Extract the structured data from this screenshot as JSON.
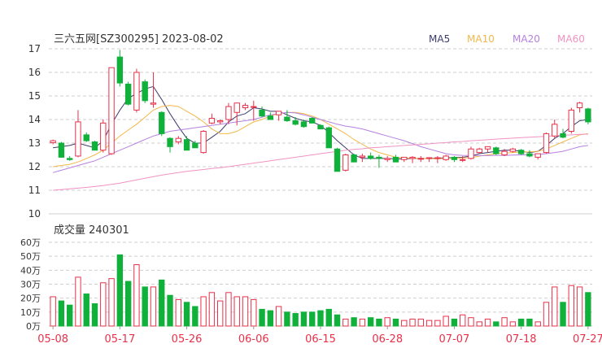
{
  "header": {
    "title": "三六五网[SZ300295] 2023-08-02",
    "legend": [
      {
        "name": "MA5",
        "color": "#3c3c6c"
      },
      {
        "name": "MA10",
        "color": "#f2b84a"
      },
      {
        "name": "MA20",
        "color": "#b580de"
      },
      {
        "name": "MA60",
        "color": "#ef93c2"
      }
    ]
  },
  "volume_header": "成交量 240301",
  "colors": {
    "up": "#e8314a",
    "down": "#10b13a",
    "grid": "#cfcfcf",
    "axis_text": "#333333",
    "date_text": "#e8314a"
  },
  "chart_data": {
    "type": "candlestick",
    "price_axis": {
      "min": 10,
      "max": 17,
      "ticks": [
        "17",
        "16",
        "15",
        "14",
        "13",
        "12",
        "11",
        "10"
      ]
    },
    "volume_axis": {
      "min": 0,
      "max": 60,
      "unit": "万",
      "ticks": [
        "60万",
        "50万",
        "40万",
        "30万",
        "20万",
        "10万",
        "0万"
      ]
    },
    "date_labels": [
      "05-08",
      "05-17",
      "05-26",
      "06-06",
      "06-15",
      "06-28",
      "07-07",
      "07-18",
      "07-27"
    ],
    "date_label_index": [
      0,
      8,
      16,
      24,
      32,
      40,
      48,
      56,
      64
    ],
    "candles": [
      [
        13.02,
        13.15,
        12.95,
        13.1
      ],
      [
        13.0,
        13.05,
        12.45,
        12.4
      ],
      [
        12.35,
        12.45,
        12.25,
        12.3
      ],
      [
        12.45,
        14.4,
        12.4,
        13.9
      ],
      [
        13.35,
        13.45,
        13.05,
        13.1
      ],
      [
        13.05,
        13.1,
        12.7,
        12.7
      ],
      [
        12.7,
        14.0,
        12.6,
        13.85
      ],
      [
        12.55,
        16.2,
        12.5,
        16.2
      ],
      [
        16.65,
        16.95,
        15.4,
        15.55
      ],
      [
        15.5,
        15.6,
        14.6,
        14.65
      ],
      [
        14.4,
        16.15,
        14.3,
        16.0
      ],
      [
        15.6,
        15.7,
        14.7,
        14.8
      ],
      [
        14.65,
        16.0,
        14.5,
        14.7
      ],
      [
        14.3,
        14.35,
        13.3,
        13.4
      ],
      [
        13.2,
        13.25,
        12.6,
        12.85
      ],
      [
        13.05,
        13.3,
        12.95,
        13.2
      ],
      [
        13.15,
        13.3,
        12.75,
        12.7
      ],
      [
        13.0,
        13.1,
        12.8,
        12.8
      ],
      [
        12.6,
        13.55,
        12.55,
        13.5
      ],
      [
        13.85,
        14.25,
        13.8,
        14.05
      ],
      [
        13.9,
        14.0,
        13.8,
        13.95
      ],
      [
        14.0,
        14.7,
        13.8,
        14.55
      ],
      [
        14.3,
        14.7,
        13.75,
        14.7
      ],
      [
        14.5,
        14.7,
        14.4,
        14.6
      ],
      [
        14.55,
        14.8,
        13.95,
        14.55
      ],
      [
        14.4,
        14.55,
        14.1,
        14.15
      ],
      [
        14.15,
        14.3,
        14.0,
        14.0
      ],
      [
        14.2,
        14.3,
        13.95,
        14.35
      ],
      [
        14.1,
        14.4,
        13.9,
        13.95
      ],
      [
        13.95,
        14.1,
        13.75,
        13.8
      ],
      [
        13.9,
        14.0,
        13.65,
        13.7
      ],
      [
        14.05,
        14.1,
        13.9,
        13.85
      ],
      [
        13.75,
        13.8,
        13.65,
        13.6
      ],
      [
        13.65,
        13.7,
        12.8,
        12.8
      ],
      [
        12.75,
        12.8,
        11.8,
        11.8
      ],
      [
        11.85,
        12.55,
        11.8,
        12.5
      ],
      [
        12.5,
        12.55,
        12.2,
        12.2
      ],
      [
        12.4,
        12.55,
        12.2,
        12.45
      ],
      [
        12.45,
        12.6,
        12.3,
        12.35
      ],
      [
        12.4,
        12.5,
        11.95,
        12.35
      ],
      [
        12.3,
        12.45,
        12.2,
        12.35
      ],
      [
        12.4,
        12.5,
        12.25,
        12.2
      ],
      [
        12.3,
        12.4,
        12.2,
        12.4
      ],
      [
        12.35,
        12.45,
        12.15,
        12.4
      ],
      [
        12.35,
        12.45,
        12.2,
        12.35
      ],
      [
        12.35,
        12.4,
        12.2,
        12.38
      ],
      [
        12.35,
        12.45,
        12.15,
        12.38
      ],
      [
        12.3,
        12.5,
        12.25,
        12.45
      ],
      [
        12.4,
        12.45,
        12.2,
        12.3
      ],
      [
        12.28,
        12.45,
        12.2,
        12.3
      ],
      [
        12.35,
        12.85,
        12.3,
        12.75
      ],
      [
        12.6,
        12.8,
        12.55,
        12.75
      ],
      [
        12.75,
        12.8,
        12.6,
        12.85
      ],
      [
        12.8,
        12.85,
        12.5,
        12.55
      ],
      [
        12.5,
        12.75,
        12.45,
        12.65
      ],
      [
        12.65,
        12.8,
        12.6,
        12.75
      ],
      [
        12.7,
        12.75,
        12.5,
        12.55
      ],
      [
        12.55,
        12.7,
        12.4,
        12.45
      ],
      [
        12.4,
        12.55,
        12.3,
        12.55
      ],
      [
        12.6,
        13.45,
        12.55,
        13.4
      ],
      [
        13.3,
        14.0,
        13.2,
        13.8
      ],
      [
        13.4,
        13.6,
        13.2,
        13.25
      ],
      [
        13.5,
        14.5,
        13.4,
        14.4
      ],
      [
        14.5,
        14.75,
        14.3,
        14.7
      ],
      [
        14.45,
        14.5,
        13.8,
        13.9
      ]
    ],
    "volume": [
      21,
      18,
      15,
      35,
      23,
      16,
      31,
      34,
      51,
      32,
      44,
      28,
      28,
      33,
      22,
      19,
      17,
      14,
      21,
      24,
      18,
      24,
      21,
      21,
      19,
      12,
      11,
      14,
      10,
      9,
      10,
      10,
      11,
      12,
      8,
      5,
      6,
      5,
      6,
      5,
      6,
      5,
      4,
      5,
      5,
      4,
      4,
      7,
      5,
      8,
      6,
      3,
      5,
      3,
      6,
      3,
      5,
      5,
      3,
      17,
      28,
      17,
      29,
      28,
      24
    ],
    "ma_series": [
      {
        "name": "MA5",
        "values": [
          12.8,
          12.85,
          12.9,
          13.0,
          12.9,
          12.8,
          13.1,
          13.8,
          14.4,
          14.9,
          15.1,
          15.3,
          15.4,
          14.85,
          14.25,
          13.7,
          13.2,
          13.0,
          13.0,
          13.25,
          13.5,
          13.9,
          14.15,
          14.25,
          14.5,
          14.45,
          14.35,
          14.35,
          14.2,
          14.05,
          13.95,
          13.9,
          13.75,
          13.45,
          13.1,
          12.8,
          12.5,
          12.35,
          12.35,
          12.35,
          12.35,
          12.33,
          12.33,
          12.35,
          12.35,
          12.35,
          12.36,
          12.38,
          12.38,
          12.4,
          12.45,
          12.55,
          12.6,
          12.65,
          12.7,
          12.7,
          12.65,
          12.6,
          12.65,
          12.9,
          13.2,
          13.4,
          13.7,
          13.95,
          14.0
        ]
      },
      {
        "name": "MA10",
        "values": [
          12.0,
          12.05,
          12.1,
          12.2,
          12.35,
          12.5,
          12.7,
          13.0,
          13.3,
          13.55,
          13.8,
          14.1,
          14.4,
          14.55,
          14.6,
          14.55,
          14.35,
          14.15,
          13.9,
          13.6,
          13.4,
          13.4,
          13.5,
          13.7,
          13.9,
          14.0,
          14.15,
          14.25,
          14.3,
          14.3,
          14.25,
          14.15,
          14.0,
          13.8,
          13.6,
          13.4,
          13.15,
          12.95,
          12.75,
          12.6,
          12.5,
          12.4,
          12.37,
          12.36,
          12.35,
          12.34,
          12.33,
          12.35,
          12.36,
          12.37,
          12.38,
          12.45,
          12.5,
          12.55,
          12.58,
          12.6,
          12.62,
          12.63,
          12.65,
          12.75,
          12.9,
          13.05,
          13.2,
          13.35,
          13.4
        ]
      },
      {
        "name": "MA20",
        "values": [
          11.75,
          11.85,
          11.95,
          12.05,
          12.15,
          12.25,
          12.4,
          12.55,
          12.7,
          12.85,
          13.0,
          13.15,
          13.3,
          13.4,
          13.5,
          13.55,
          13.6,
          13.65,
          13.7,
          13.75,
          13.8,
          13.85,
          13.9,
          13.95,
          14.0,
          14.1,
          14.2,
          14.25,
          14.3,
          14.28,
          14.2,
          14.1,
          14.0,
          13.9,
          13.8,
          13.72,
          13.67,
          13.6,
          13.5,
          13.4,
          13.3,
          13.2,
          13.1,
          12.98,
          12.85,
          12.75,
          12.65,
          12.55,
          12.5,
          12.48,
          12.47,
          12.47,
          12.47,
          12.48,
          12.48,
          12.49,
          12.5,
          12.51,
          12.52,
          12.55,
          12.6,
          12.65,
          12.75,
          12.85,
          12.9
        ]
      },
      {
        "name": "MA60",
        "values": [
          11.0,
          11.03,
          11.06,
          11.09,
          11.12,
          11.16,
          11.2,
          11.25,
          11.3,
          11.37,
          11.44,
          11.51,
          11.58,
          11.64,
          11.7,
          11.75,
          11.8,
          11.84,
          11.88,
          11.92,
          11.96,
          12.0,
          12.05,
          12.1,
          12.15,
          12.2,
          12.25,
          12.3,
          12.35,
          12.4,
          12.45,
          12.5,
          12.55,
          12.6,
          12.65,
          12.7,
          12.73,
          12.76,
          12.8,
          12.82,
          12.85,
          12.87,
          12.9,
          12.92,
          12.95,
          12.97,
          13.0,
          13.02,
          13.05,
          13.07,
          13.1,
          13.12,
          13.14,
          13.17,
          13.19,
          13.21,
          13.23,
          13.25,
          13.27,
          13.29,
          13.31,
          13.33,
          13.35,
          13.37,
          13.38
        ]
      }
    ]
  }
}
